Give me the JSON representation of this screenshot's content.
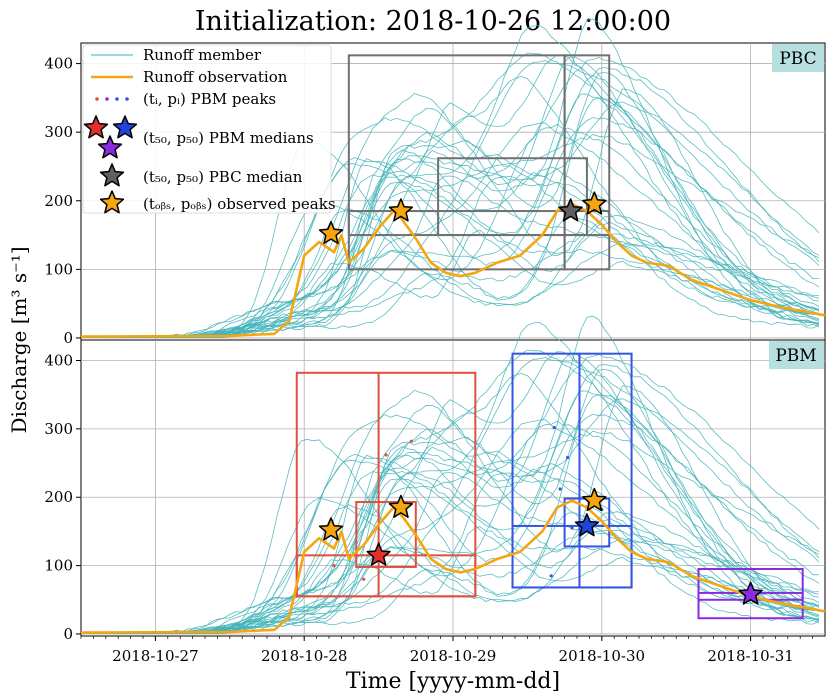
{
  "figure": {
    "title": "Initialization: 2018-10-26 12:00:00",
    "xlabel": "Time [yyyy-mm-dd]",
    "ylabel": "Discharge [m³ s⁻¹]",
    "colors": {
      "member": "#3fb3b8",
      "observation": "#f5a50f",
      "grid": "#b0b0b0",
      "pbc_box": "#707070",
      "pbm_red": "#e05040",
      "pbm_blue": "#3355e0",
      "pbm_purple": "#8a2be2",
      "panel_label_bg": "#b8dfe0"
    }
  },
  "legend": {
    "items": [
      {
        "label": "Runoff member",
        "kind": "line",
        "color": "#3fb3b8"
      },
      {
        "label": "Runoff observation",
        "kind": "thick-line",
        "color": "#f5a50f"
      },
      {
        "label": "(tᵢ, pᵢ) PBM peaks",
        "kind": "dots",
        "color": "#3355e0"
      },
      {
        "label": "(t₅₀, p₅₀) PBM medians",
        "kind": "stars-rgb",
        "color": "#e03030"
      },
      {
        "label": "(t₅₀, p₅₀) PBC median",
        "kind": "star",
        "color": "#606060"
      },
      {
        "label": "(tₒᵦₛ, pₒᵦₛ) observed peaks",
        "kind": "star",
        "color": "#f5a50f"
      }
    ]
  },
  "chart_data": [
    {
      "type": "line",
      "panel_label": "PBC",
      "x_ticks": [
        "2018-10-27",
        "2018-10-28",
        "2018-10-29",
        "2018-10-30",
        "2018-10-31"
      ],
      "y_ticks": [
        0,
        100,
        200,
        300,
        400
      ],
      "ylim": [
        0,
        430
      ],
      "xlim_days_from_2018-10-27": [
        -0.5,
        4.5
      ],
      "observation": {
        "t": [
          -0.5,
          0.5,
          0.8,
          0.9,
          1.0,
          1.1,
          1.2,
          1.25,
          1.3,
          1.4,
          1.5,
          1.6,
          1.65,
          1.75,
          1.85,
          1.95,
          2.05,
          2.15,
          2.3,
          2.45,
          2.6,
          2.7,
          2.8,
          2.9,
          3.0,
          3.1,
          3.2,
          3.3,
          3.45,
          3.6,
          3.8,
          4.0,
          4.2,
          4.5
        ],
        "q": [
          2,
          3,
          6,
          25,
          120,
          140,
          125,
          150,
          110,
          130,
          160,
          185,
          175,
          145,
          110,
          95,
          90,
          95,
          110,
          120,
          150,
          185,
          195,
          185,
          165,
          140,
          120,
          110,
          105,
          85,
          70,
          55,
          45,
          33
        ]
      },
      "observed_peaks": [
        {
          "t": 1.18,
          "q": 152
        },
        {
          "t": 1.65,
          "q": 185
        },
        {
          "t": 2.95,
          "q": 195
        }
      ],
      "median_star": {
        "t": 2.79,
        "q": 185,
        "color": "#606060"
      },
      "boxes": [
        {
          "t0": 1.3,
          "t1": 2.75,
          "q0": 100,
          "q1": 412,
          "median_t": 2.75,
          "color": "#707070"
        },
        {
          "t0": 2.75,
          "t1": 3.05,
          "q0": 100,
          "q1": 412,
          "color": "#707070"
        },
        {
          "t0": 1.3,
          "t1": 3.05,
          "q0": 150,
          "q1": 185,
          "color": "#707070"
        },
        {
          "t0": 1.9,
          "t1": 2.9,
          "q0": 150,
          "q1": 262,
          "color": "#707070"
        }
      ]
    },
    {
      "type": "line",
      "panel_label": "PBM",
      "x_ticks": [
        "2018-10-27",
        "2018-10-28",
        "2018-10-29",
        "2018-10-30",
        "2018-10-31"
      ],
      "y_ticks": [
        0,
        100,
        200,
        300,
        400
      ],
      "ylim": [
        0,
        430
      ],
      "xlim_days_from_2018-10-27": [
        -0.5,
        4.5
      ],
      "observed_peaks": [
        {
          "t": 1.18,
          "q": 152
        },
        {
          "t": 1.65,
          "q": 185
        },
        {
          "t": 2.95,
          "q": 195
        }
      ],
      "median_stars": [
        {
          "t": 1.5,
          "q": 115,
          "color": "#e03030"
        },
        {
          "t": 2.9,
          "q": 158,
          "color": "#2244dd"
        },
        {
          "t": 4.0,
          "q": 58,
          "color": "#8a2be2"
        }
      ],
      "boxes": [
        {
          "t0": 0.95,
          "t1": 2.15,
          "q0": 55,
          "q1": 382,
          "color": "#e05040"
        },
        {
          "t0": 1.5,
          "t1": 1.5,
          "q0": 55,
          "q1": 382,
          "color": "#e05040"
        },
        {
          "t0": 0.95,
          "t1": 2.15,
          "q0": 55,
          "q1": 115,
          "color": "#e05040"
        },
        {
          "t0": 1.35,
          "t1": 1.75,
          "q0": 98,
          "q1": 193,
          "color": "#e05040"
        },
        {
          "t0": 2.4,
          "t1": 3.2,
          "q0": 68,
          "q1": 410,
          "color": "#3355e0"
        },
        {
          "t0": 2.85,
          "t1": 2.85,
          "q0": 68,
          "q1": 410,
          "color": "#3355e0"
        },
        {
          "t0": 2.4,
          "t1": 3.2,
          "q0": 68,
          "q1": 158,
          "color": "#3355e0"
        },
        {
          "t0": 2.75,
          "t1": 3.05,
          "q0": 128,
          "q1": 198,
          "color": "#3355e0"
        },
        {
          "t0": 3.65,
          "t1": 4.35,
          "q0": 23,
          "q1": 95,
          "color": "#8a2be2"
        },
        {
          "t0": 3.65,
          "t1": 4.35,
          "q0": 50,
          "q1": 60,
          "color": "#8a2be2"
        }
      ],
      "pbm_peaks": [
        {
          "t": 1.55,
          "q": 262,
          "color": "#e05040"
        },
        {
          "t": 1.72,
          "q": 282,
          "color": "#e05040"
        },
        {
          "t": 1.4,
          "q": 80,
          "color": "#e05040"
        },
        {
          "t": 1.2,
          "q": 100,
          "color": "#e05040"
        },
        {
          "t": 2.68,
          "q": 302,
          "color": "#3355e0"
        },
        {
          "t": 2.77,
          "q": 258,
          "color": "#3355e0"
        },
        {
          "t": 2.72,
          "q": 212,
          "color": "#3355e0"
        },
        {
          "t": 2.66,
          "q": 85,
          "color": "#3355e0"
        },
        {
          "t": 3.0,
          "q": 182,
          "color": "#3355e0"
        },
        {
          "t": 2.8,
          "q": 155,
          "color": "#3355e0"
        }
      ]
    }
  ]
}
